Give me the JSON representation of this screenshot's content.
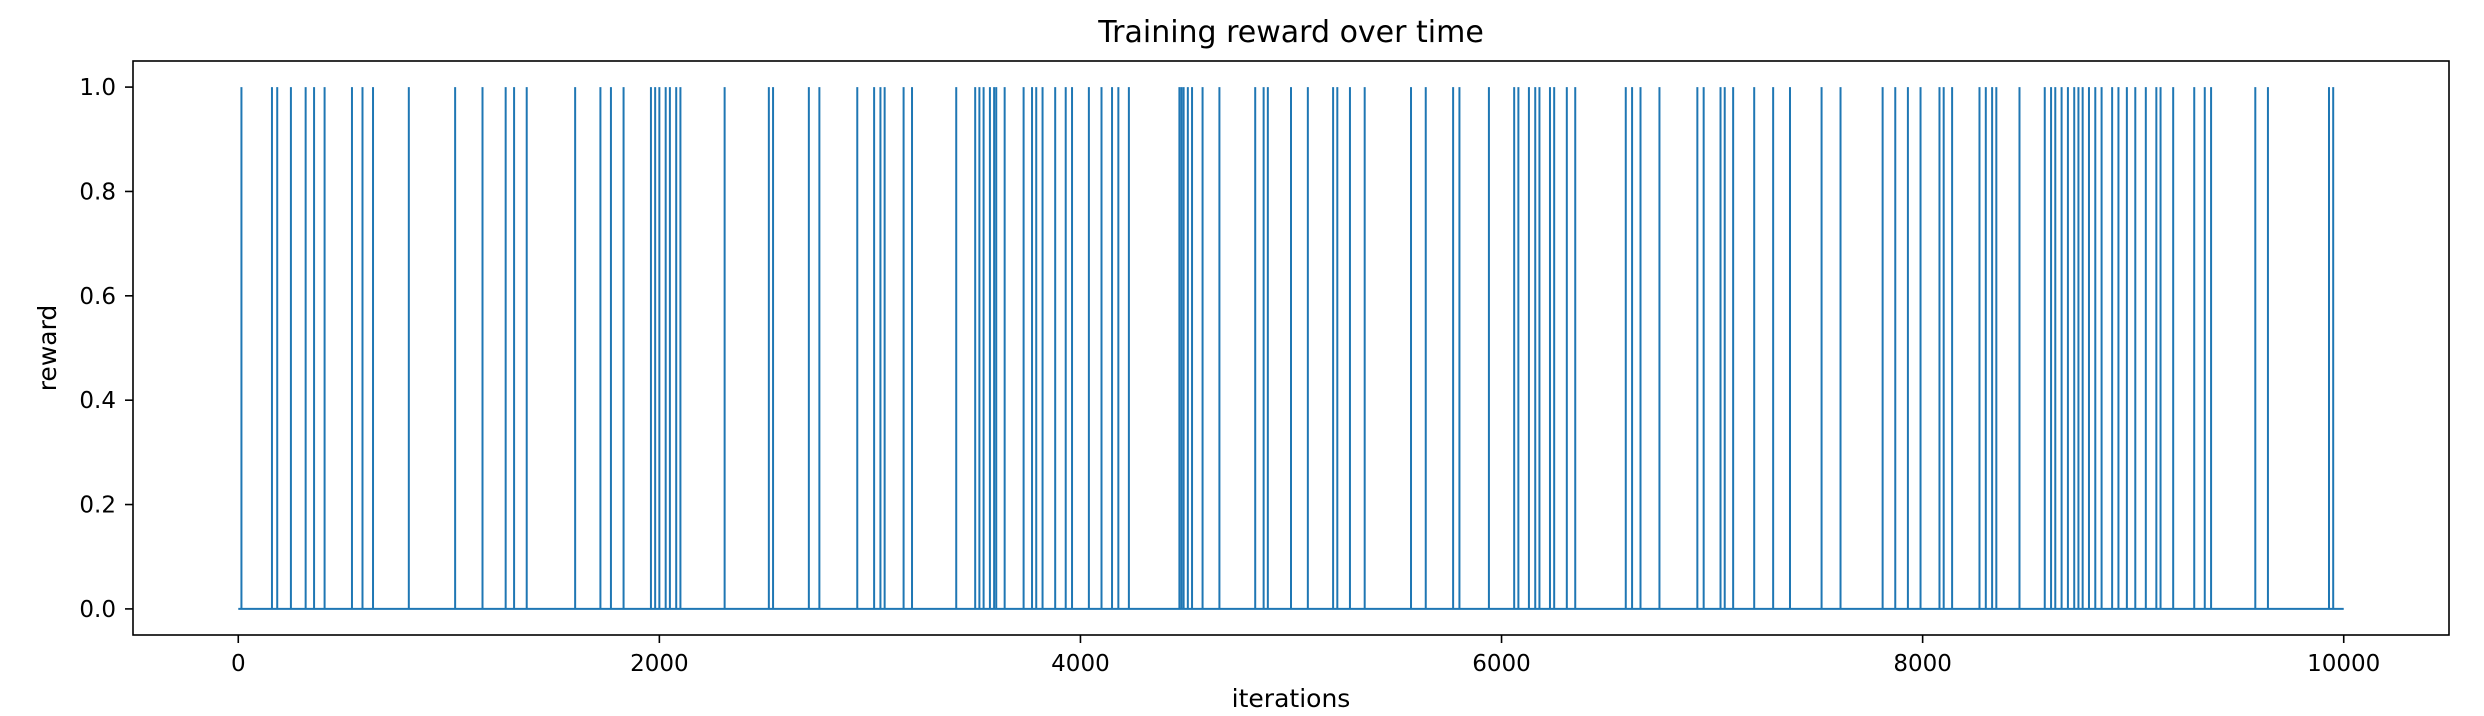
{
  "chart_data": {
    "type": "line",
    "title": "Training reward over time",
    "xlabel": "iterations",
    "ylabel": "reward",
    "xlim": [
      -500,
      10500
    ],
    "ylim": [
      -0.05,
      1.05
    ],
    "xticks": [
      0,
      2000,
      4000,
      6000,
      8000,
      10000
    ],
    "xtick_labels": [
      "0",
      "2000",
      "4000",
      "6000",
      "8000",
      "10000"
    ],
    "yticks": [
      0.0,
      0.2,
      0.4,
      0.6,
      0.8,
      1.0
    ],
    "ytick_labels": [
      "0.0",
      "0.2",
      "0.4",
      "0.6",
      "0.8",
      "1.0"
    ],
    "grid": false,
    "series": [
      {
        "color": "#1f77b4",
        "x_range": [
          0,
          10000
        ],
        "baseline": 0.0,
        "spike_value": 1.0,
        "spike_x": [
          15,
          160,
          185,
          250,
          320,
          360,
          410,
          540,
          590,
          640,
          810,
          1030,
          1160,
          1270,
          1310,
          1370,
          1600,
          1720,
          1770,
          1830,
          1960,
          1980,
          2000,
          2030,
          2050,
          2080,
          2100,
          2310,
          2520,
          2540,
          2710,
          2760,
          2940,
          3020,
          3050,
          3070,
          3160,
          3200,
          3410,
          3500,
          3520,
          3540,
          3570,
          3590,
          3600,
          3640,
          3730,
          3770,
          3790,
          3820,
          3880,
          3930,
          3960,
          4040,
          4100,
          4150,
          4180,
          4230,
          4470,
          4480,
          4490,
          4510,
          4530,
          4580,
          4660,
          4830,
          4870,
          4890,
          5000,
          5080,
          5200,
          5220,
          5280,
          5350,
          5570,
          5640,
          5770,
          5800,
          5940,
          6060,
          6080,
          6130,
          6160,
          6180,
          6230,
          6250,
          6310,
          6350,
          6590,
          6620,
          6660,
          6750,
          6930,
          6960,
          7040,
          7060,
          7100,
          7200,
          7290,
          7370,
          7520,
          7610,
          7810,
          7870,
          7930,
          7990,
          8080,
          8100,
          8140,
          8270,
          8300,
          8330,
          8350,
          8460,
          8580,
          8610,
          8630,
          8660,
          8690,
          8720,
          8740,
          8760,
          8790,
          8820,
          8850,
          8900,
          8930,
          8970,
          9010,
          9060,
          9110,
          9130,
          9190,
          9290,
          9340,
          9370,
          9580,
          9640,
          9930,
          9950
        ]
      }
    ]
  }
}
